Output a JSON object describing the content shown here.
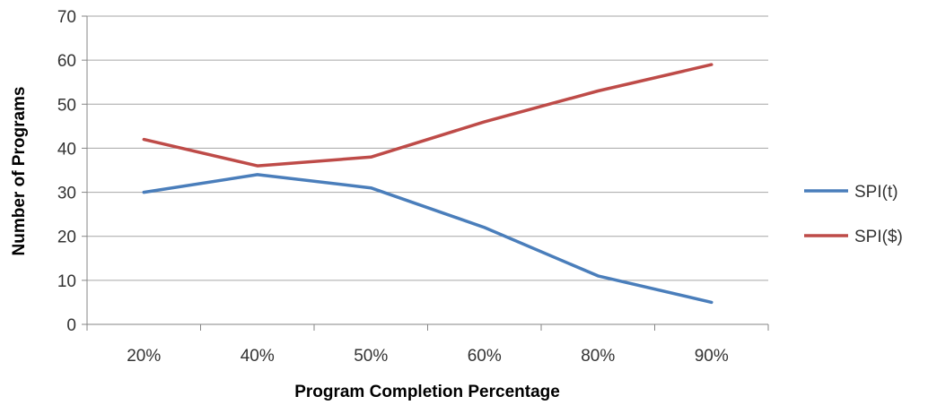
{
  "chart_data": {
    "type": "line",
    "categories": [
      "20%",
      "40%",
      "50%",
      "60%",
      "80%",
      "90%"
    ],
    "series": [
      {
        "name": "SPI(t)",
        "values": [
          30,
          34,
          31,
          22,
          11,
          5
        ],
        "color": "#4a7ebb"
      },
      {
        "name": "SPI($)",
        "values": [
          42,
          36,
          38,
          46,
          53,
          59
        ],
        "color": "#be4b48"
      }
    ],
    "xlabel": "Program Completion Percentage",
    "ylabel": "Number of Programs",
    "ylim": [
      0,
      70
    ],
    "yticks": [
      0,
      10,
      20,
      30,
      40,
      50,
      60,
      70
    ],
    "grid": true,
    "legend_position": "right"
  }
}
